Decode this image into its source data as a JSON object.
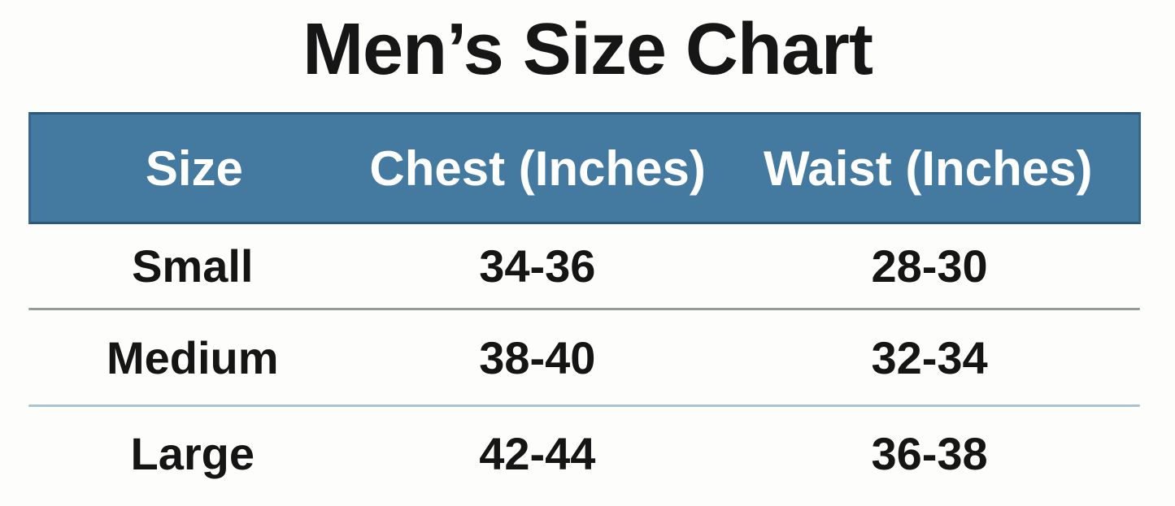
{
  "title": "Men’s Size Chart",
  "table": {
    "columns": [
      "Size",
      "Chest (Inches)",
      "Waist (Inches)"
    ],
    "rows": [
      {
        "cells": [
          "Small",
          "34-36",
          "28-30"
        ]
      },
      {
        "cells": [
          "Medium",
          "38-40",
          "32-34"
        ]
      },
      {
        "cells": [
          "Large",
          "42-44",
          "36-38"
        ]
      }
    ]
  },
  "colors": {
    "header_background": "#447aa0",
    "header_border": "#2b5a78",
    "header_text": "#ffffff",
    "body_text": "#151515",
    "divider_gray": "#949b9b",
    "divider_light_blue": "#a9c3d6",
    "page_background": "#fdfdfb"
  },
  "chart_data": {
    "type": "table",
    "title": "Men’s Size Chart",
    "columns": [
      "Size",
      "Chest (Inches)",
      "Waist (Inches)"
    ],
    "rows": [
      [
        "Small",
        "34-36",
        "28-30"
      ],
      [
        "Medium",
        "38-40",
        "32-34"
      ],
      [
        "Large",
        "42-44",
        "36-38"
      ]
    ]
  }
}
